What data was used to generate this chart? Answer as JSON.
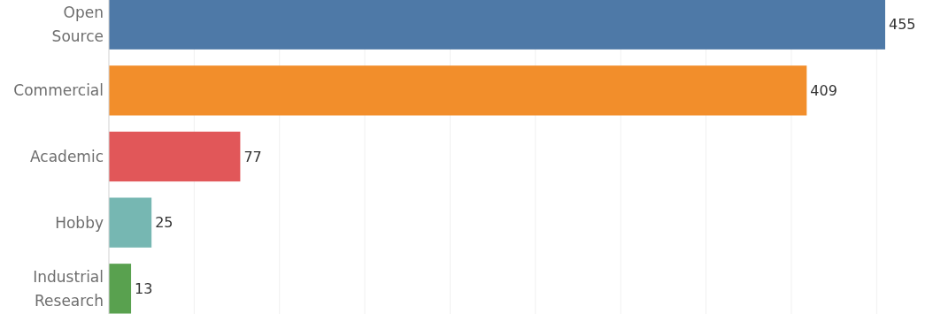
{
  "chart_data": {
    "type": "bar",
    "orientation": "horizontal",
    "categories": [
      "Open Source",
      "Commercial",
      "Academic",
      "Hobby",
      "Industrial Research"
    ],
    "values": [
      455,
      409,
      77,
      25,
      13
    ],
    "colors": [
      "#4e79a7",
      "#f28e2b",
      "#e15759",
      "#76b7b2",
      "#59a14f"
    ],
    "xticks": [
      {
        "value": 0,
        "label": null
      },
      {
        "value": 50,
        "label": null
      },
      {
        "value": 100,
        "label": null
      },
      {
        "value": 150,
        "label": null
      },
      {
        "value": 200,
        "label": null
      },
      {
        "value": 250,
        "label": null
      },
      {
        "value": 300,
        "label": null
      },
      {
        "value": 350,
        "label": null
      },
      {
        "value": 400,
        "label": null
      },
      {
        "value": 450,
        "label": null
      }
    ],
    "grid": "x",
    "data_labels": true,
    "tick_labels": "y"
  }
}
